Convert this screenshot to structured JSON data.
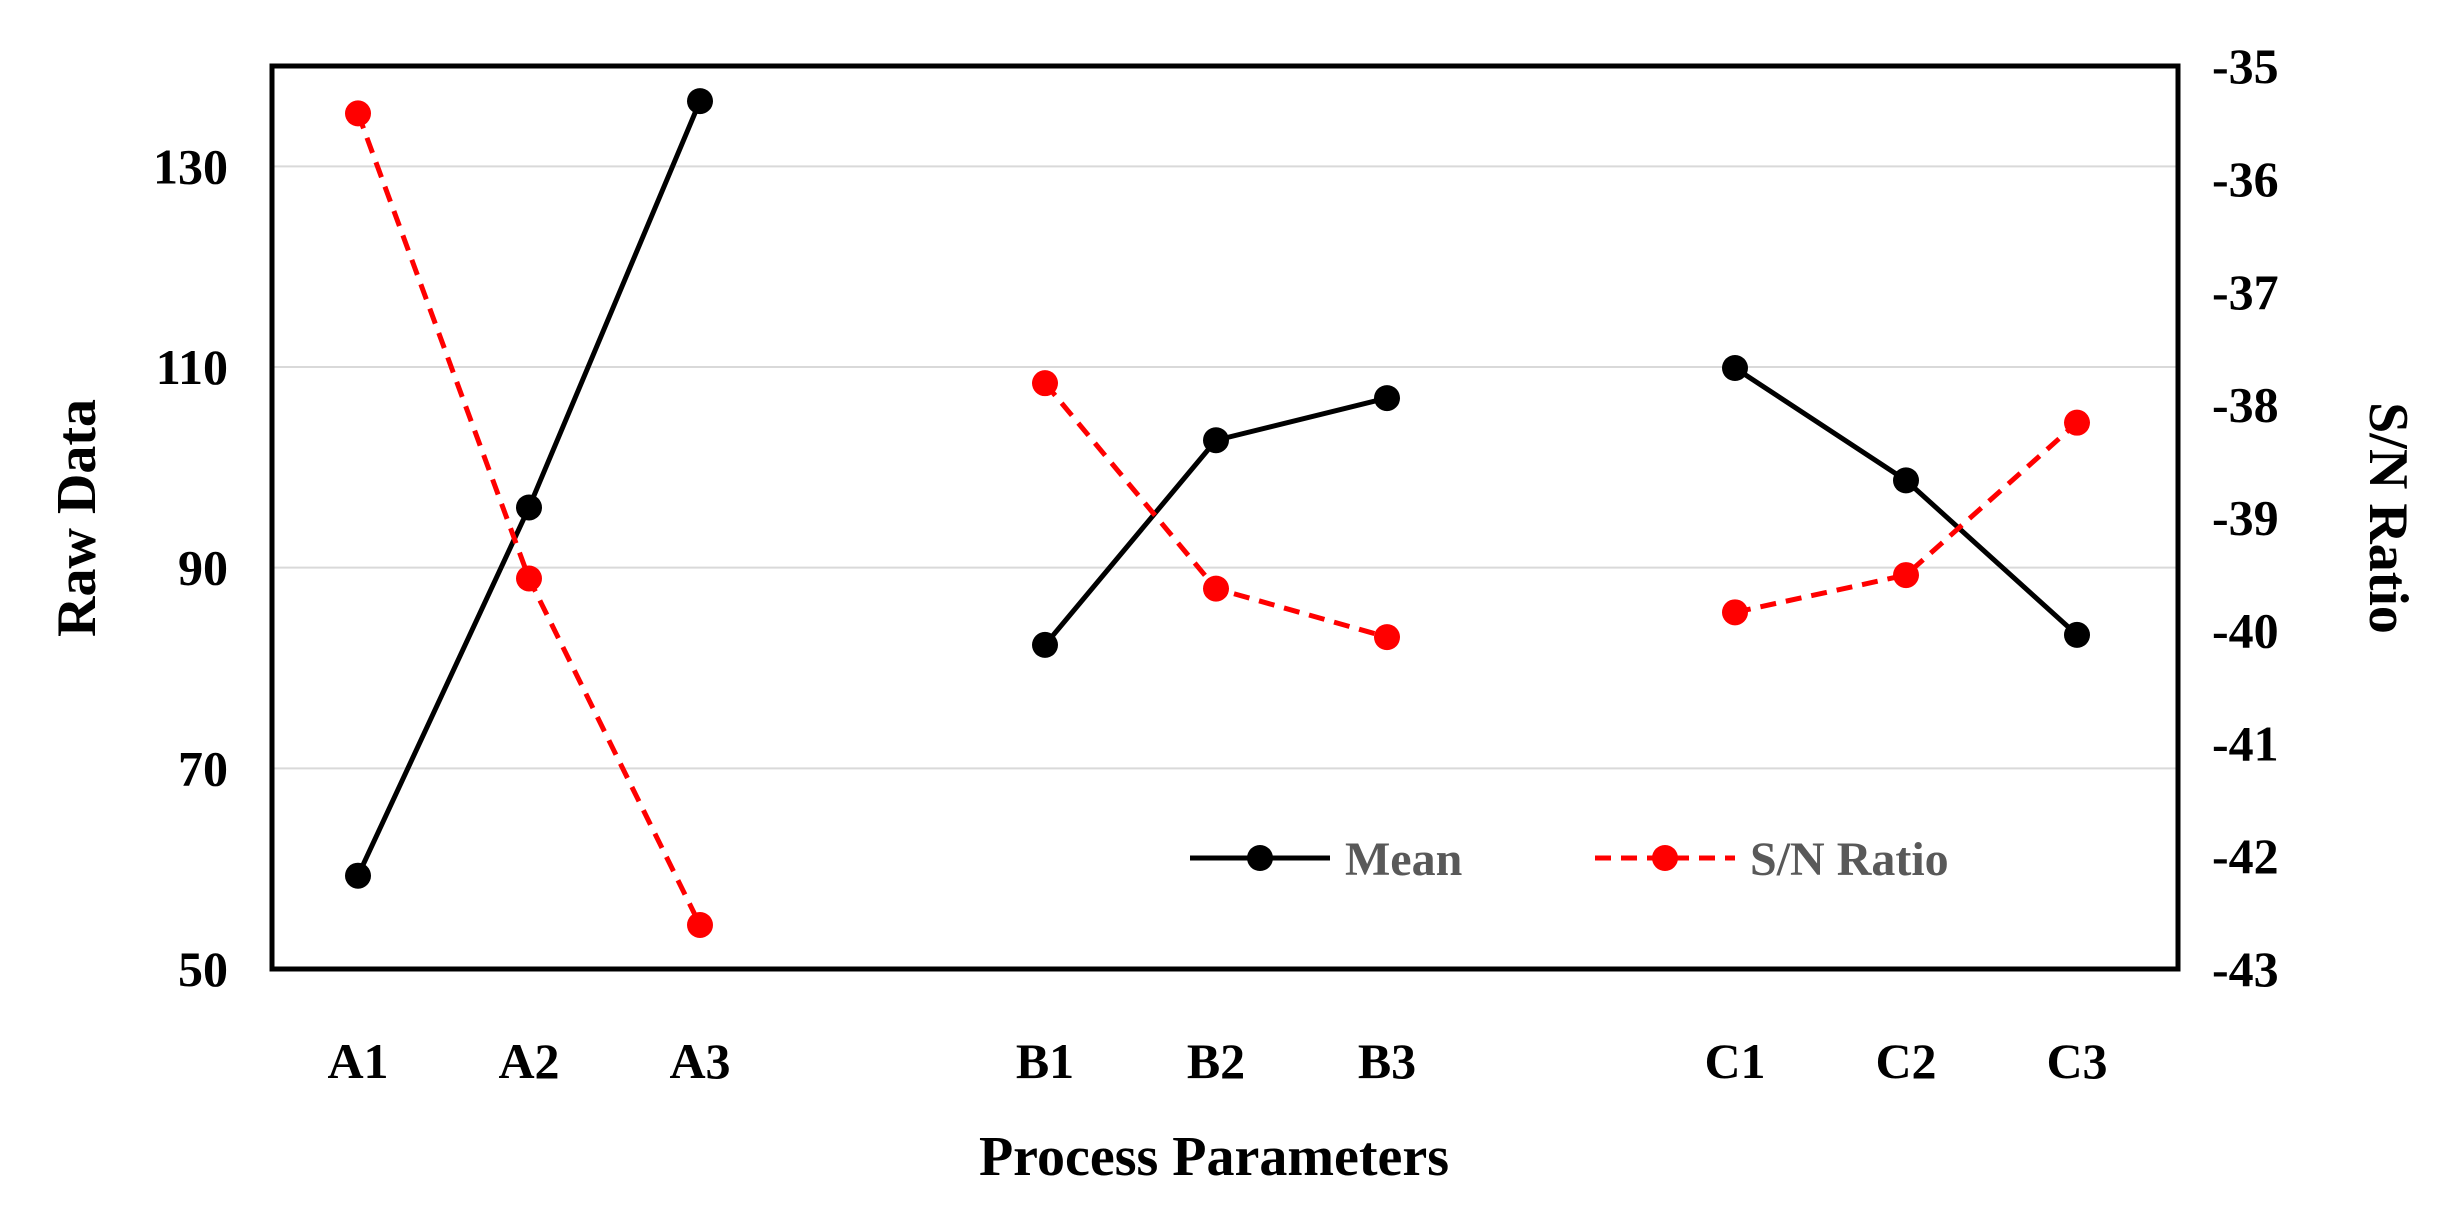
{
  "chart_data": {
    "type": "line",
    "title": "",
    "xlabel": "Process Parameters",
    "ylabel": "Raw Data",
    "y2label": "S/N Ratio",
    "categories": [
      "A1",
      "A2",
      "A3",
      "B1",
      "B2",
      "B3",
      "C1",
      "C2",
      "C3"
    ],
    "groups": [
      [
        "A1",
        "A2",
        "A3"
      ],
      [
        "B1",
        "B2",
        "B3"
      ],
      [
        "C1",
        "C2",
        "C3"
      ]
    ],
    "ylim": [
      50,
      140
    ],
    "yticks": [
      50,
      70,
      90,
      110,
      130
    ],
    "y2lim": [
      -43,
      -35
    ],
    "y2ticks": [
      -43,
      -42,
      -41,
      -40,
      -39,
      -38,
      -37,
      -36,
      -35
    ],
    "grid": true,
    "legend_position": "bottom-right",
    "series": [
      {
        "name": "Mean",
        "axis": "left",
        "style": "solid",
        "color": "#000000",
        "values": [
          59.3,
          96.0,
          136.5,
          82.3,
          102.7,
          106.9,
          109.9,
          98.7,
          83.3
        ]
      },
      {
        "name": "S/N Ratio",
        "axis": "right",
        "style": "dashed",
        "color": "#ff0000",
        "values": [
          -35.42,
          -39.54,
          -42.61,
          -37.81,
          -39.63,
          -40.06,
          -39.84,
          -39.51,
          -38.16
        ]
      }
    ]
  }
}
